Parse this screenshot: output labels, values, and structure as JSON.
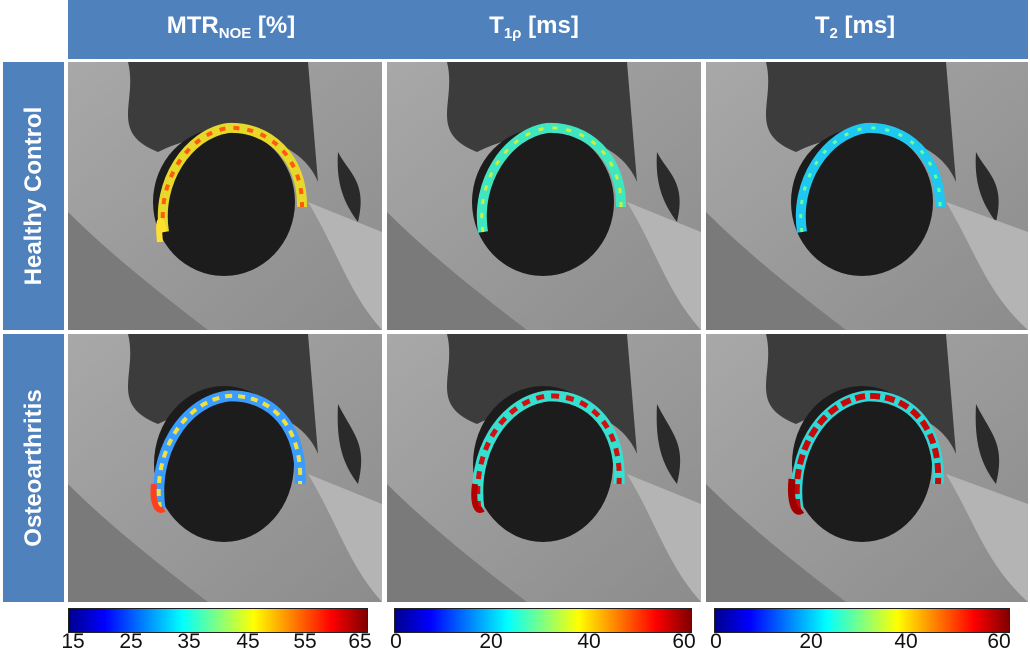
{
  "columns": [
    {
      "main": "MTR",
      "sub": "NOE",
      "unit": " [%]"
    },
    {
      "main": "T",
      "sub": "1ρ",
      "unit": " [ms]"
    },
    {
      "main": "T",
      "sub": "2",
      "unit": " [ms]"
    }
  ],
  "rows": [
    "Healthy Control",
    "Osteoarthritis"
  ],
  "panels": [
    {
      "row": "Healthy Control",
      "column": "MTR_NOE",
      "map": "mtr-hc"
    },
    {
      "row": "Healthy Control",
      "column": "T1rho",
      "map": "t1r-hc"
    },
    {
      "row": "Healthy Control",
      "column": "T2",
      "map": "t2-hc"
    },
    {
      "row": "Osteoarthritis",
      "column": "MTR_NOE",
      "map": "mtr-oa"
    },
    {
      "row": "Osteoarthritis",
      "column": "T1rho",
      "map": "t1r-oa"
    },
    {
      "row": "Osteoarthritis",
      "column": "T2",
      "map": "t2-oa"
    }
  ],
  "colorbars": [
    {
      "name": "mtr-colorbar",
      "ticks": [
        "15",
        "25",
        "35",
        "45",
        "55",
        "65"
      ],
      "min": 15,
      "max": 65
    },
    {
      "name": "t1rho-colorbar",
      "ticks": [
        "0",
        "20",
        "40",
        "60"
      ],
      "min": 0,
      "max": 60
    },
    {
      "name": "t2-colorbar",
      "ticks": [
        "0",
        "20",
        "40",
        "60"
      ],
      "min": 0,
      "max": 60
    }
  ],
  "colors": {
    "header": "#4f81bd",
    "header_text": "#ffffff"
  }
}
